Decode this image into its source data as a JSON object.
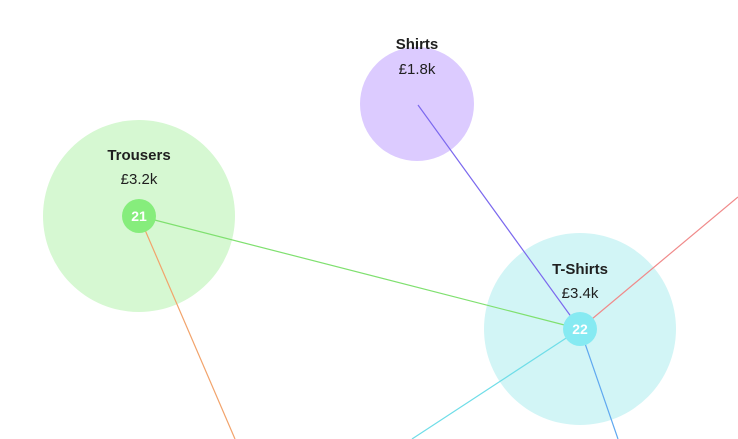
{
  "nodes": [
    {
      "id": "shirts",
      "title": "Shirts",
      "value": "£1.8k",
      "fill_color": "#dccbff",
      "badge": null
    },
    {
      "id": "trousers",
      "title": "Trousers",
      "value": "£3.2k",
      "fill_color": "#d6f8d2",
      "badge": {
        "label": "21",
        "color": "#86ed7c"
      }
    },
    {
      "id": "tshirts",
      "title": "T-Shirts",
      "value": "£3.4k",
      "fill_color": "#d2f5f6",
      "badge": {
        "label": "22",
        "color": "#86eaf2"
      }
    }
  ],
  "links": [
    {
      "id": "shirts-to-tshirts",
      "color": "#7b68ee"
    },
    {
      "id": "trousers-to-tshirts",
      "color": "#7fe06f"
    },
    {
      "id": "trousers-to-offscreen",
      "color": "#f2a36b"
    },
    {
      "id": "tshirts-to-offscreen-top-right",
      "color": "#f08a8a"
    },
    {
      "id": "tshirts-to-offscreen-bottom-left",
      "color": "#6fdde8"
    },
    {
      "id": "tshirts-to-offscreen-bottom",
      "color": "#5fa8f0"
    }
  ]
}
